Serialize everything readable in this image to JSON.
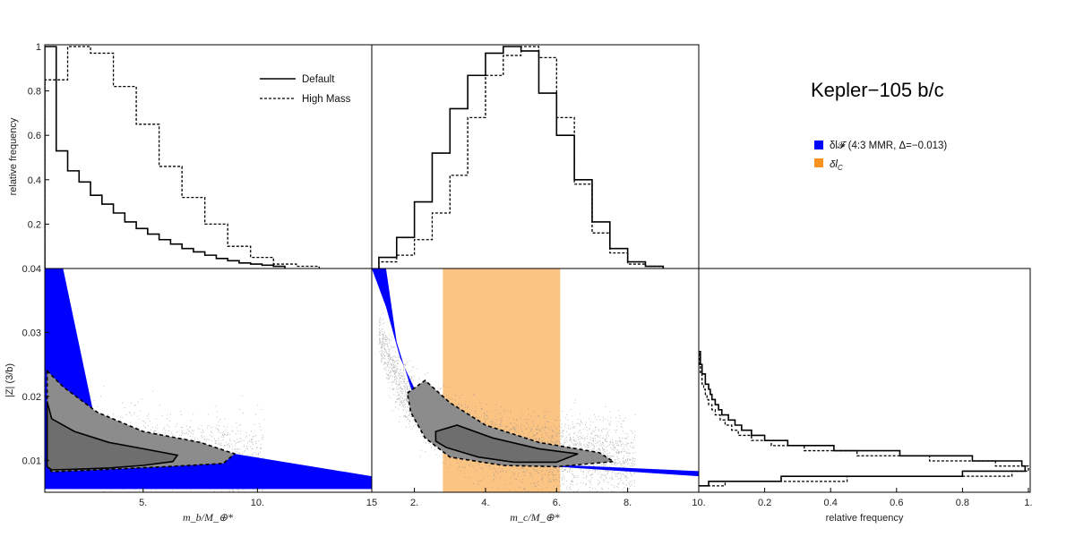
{
  "figure_title": "Kepler−105 b/c",
  "legend_hist": {
    "default": "Default",
    "high_mass": "High Mass"
  },
  "legend_regions": {
    "blue_label": "δl𝓕 (4:3 MMR, Δ=−0.013)",
    "orange_label": "δl",
    "orange_sub": "C",
    "blue_color": "#0000ff",
    "orange_color": "#f7931e"
  },
  "axes_labels": {
    "ylabel_top": "relative frequency",
    "ylabel_bottom": "|Z| (3/b)",
    "xlabel_mb": "m_b/M_⊕*",
    "xlabel_mc": "m_c/M_⊕*",
    "xlabel_right": "relative frequency"
  },
  "chart_data": [
    {
      "type": "bar",
      "panel": "histogram m_b",
      "title": "",
      "xlim": [
        0.7,
        15
      ],
      "ylim": [
        0,
        1
      ],
      "xticks": [
        "5.",
        "10.",
        "15"
      ],
      "yticks": [
        "0.2",
        "0.4",
        "0.6",
        "0.8",
        "1"
      ],
      "ylabel": "relative frequency",
      "series": [
        {
          "name": "Default",
          "style": "solid",
          "bin_edges": [
            0.7,
            1.2,
            1.7,
            2.2,
            2.7,
            3.2,
            3.7,
            4.2,
            4.7,
            5.2,
            5.7,
            6.2,
            6.7,
            7.2,
            7.7,
            8.2,
            8.7,
            9.2,
            9.7,
            10.2,
            10.7,
            11.2
          ],
          "values": [
            1.0,
            0.53,
            0.44,
            0.39,
            0.33,
            0.29,
            0.25,
            0.21,
            0.18,
            0.155,
            0.13,
            0.11,
            0.09,
            0.075,
            0.06,
            0.045,
            0.035,
            0.025,
            0.02,
            0.015,
            0.01
          ]
        },
        {
          "name": "High Mass",
          "style": "dashed",
          "bin_edges": [
            0.7,
            1.7,
            2.7,
            3.7,
            4.7,
            5.7,
            6.7,
            7.7,
            8.7,
            9.7,
            10.7,
            11.7,
            12.7
          ],
          "values": [
            0.85,
            1.0,
            0.97,
            0.82,
            0.65,
            0.46,
            0.32,
            0.2,
            0.1,
            0.05,
            0.02,
            0.01
          ]
        }
      ]
    },
    {
      "type": "bar",
      "panel": "histogram m_c",
      "title": "",
      "xlim": [
        0.8,
        10
      ],
      "ylim": [
        0,
        1
      ],
      "xticks": [
        "2.",
        "4.",
        "6.",
        "8.",
        "10."
      ],
      "series": [
        {
          "name": "Default",
          "style": "solid",
          "bin_edges": [
            1.0,
            1.5,
            2.0,
            2.5,
            3.0,
            3.5,
            4.0,
            4.5,
            5.0,
            5.5,
            6.0,
            6.5,
            7.0,
            7.5,
            8.0,
            8.5,
            9.0
          ],
          "values": [
            0.05,
            0.14,
            0.3,
            0.52,
            0.72,
            0.87,
            0.97,
            1.0,
            0.98,
            0.79,
            0.6,
            0.4,
            0.21,
            0.09,
            0.03,
            0.01
          ]
        },
        {
          "name": "High Mass",
          "style": "dashed",
          "bin_edges": [
            1.0,
            1.5,
            2.0,
            2.5,
            3.0,
            3.5,
            4.0,
            4.5,
            5.0,
            5.5,
            6.0,
            6.5,
            7.0,
            7.5,
            8.0,
            8.5,
            9.0
          ],
          "values": [
            0.03,
            0.06,
            0.13,
            0.25,
            0.42,
            0.68,
            0.87,
            0.96,
            1.0,
            0.95,
            0.68,
            0.38,
            0.16,
            0.07,
            0.02,
            0.01
          ]
        }
      ]
    },
    {
      "type": "scatter",
      "panel": "|Z| vs m_b",
      "xlim": [
        0.7,
        15
      ],
      "ylim": [
        0.005,
        0.04
      ],
      "xticks": [
        "5.",
        "10.",
        "15"
      ],
      "yticks": [
        "0.01",
        "0.02",
        "0.03",
        "0.04"
      ],
      "ylabel": "|Z| (3/b)",
      "blue_region": {
        "upper_curve": [
          [
            0.7,
            0.04
          ],
          [
            1.5,
            0.04
          ],
          [
            3.0,
            0.0145
          ],
          [
            15,
            0.0075
          ]
        ],
        "lower_curve": [
          [
            0.7,
            0.0055
          ],
          [
            15,
            0.0055
          ]
        ]
      },
      "contour_solid": [
        [
          0.8,
          0.0192
        ],
        [
          1.0,
          0.0165
        ],
        [
          2.0,
          0.0145
        ],
        [
          3.5,
          0.0128
        ],
        [
          5.0,
          0.0118
        ],
        [
          6.5,
          0.0108
        ],
        [
          6.3,
          0.0098
        ],
        [
          5.0,
          0.0092
        ],
        [
          3.5,
          0.0088
        ],
        [
          2.0,
          0.0086
        ],
        [
          1.0,
          0.0085
        ],
        [
          0.8,
          0.009
        ]
      ],
      "contour_dashed": [
        [
          0.8,
          0.024
        ],
        [
          1.5,
          0.0215
        ],
        [
          3.0,
          0.0175
        ],
        [
          5.0,
          0.0145
        ],
        [
          7.5,
          0.0128
        ],
        [
          9.0,
          0.011
        ],
        [
          8.5,
          0.0095
        ],
        [
          6.0,
          0.009
        ],
        [
          3.0,
          0.0085
        ],
        [
          1.0,
          0.0082
        ],
        [
          0.8,
          0.009
        ]
      ]
    },
    {
      "type": "scatter",
      "panel": "|Z| vs m_c",
      "xlim": [
        0.8,
        10
      ],
      "ylim": [
        0.005,
        0.04
      ],
      "xticks": [
        "2.",
        "4.",
        "6.",
        "8.",
        "10."
      ],
      "blue_region": {
        "upper_curve": [
          [
            0.8,
            0.04
          ],
          [
            1.2,
            0.034
          ],
          [
            1.6,
            0.026
          ],
          [
            2.4,
            0.0165
          ],
          [
            4.0,
            0.011
          ],
          [
            6.0,
            0.0093
          ],
          [
            10,
            0.0083
          ]
        ],
        "lower_curve": [
          [
            1.2,
            0.04
          ],
          [
            1.5,
            0.0285
          ],
          [
            2.0,
            0.0195
          ],
          [
            3.0,
            0.0132
          ],
          [
            4.5,
            0.0103
          ],
          [
            6.0,
            0.009
          ],
          [
            10,
            0.0075
          ]
        ]
      },
      "orange_band": {
        "x_range": [
          2.8,
          6.1
        ]
      },
      "contour_solid": [
        [
          2.6,
          0.0145
        ],
        [
          3.2,
          0.0155
        ],
        [
          4.2,
          0.0135
        ],
        [
          5.5,
          0.0118
        ],
        [
          6.6,
          0.011
        ],
        [
          6.0,
          0.0097
        ],
        [
          4.8,
          0.0097
        ],
        [
          3.8,
          0.0105
        ],
        [
          2.9,
          0.012
        ],
        [
          2.6,
          0.013
        ]
      ],
      "contour_dashed": [
        [
          1.8,
          0.0205
        ],
        [
          2.3,
          0.0225
        ],
        [
          3.0,
          0.019
        ],
        [
          4.0,
          0.0155
        ],
        [
          5.5,
          0.0128
        ],
        [
          7.2,
          0.0112
        ],
        [
          7.6,
          0.0098
        ],
        [
          6.0,
          0.009
        ],
        [
          4.5,
          0.0092
        ],
        [
          3.0,
          0.0105
        ],
        [
          2.3,
          0.0135
        ],
        [
          1.9,
          0.0175
        ]
      ]
    },
    {
      "type": "bar",
      "panel": "histogram |Z| (horizontal)",
      "xlim": [
        0,
        1
      ],
      "ylim": [
        0.005,
        0.04
      ],
      "xticks": [
        "0.2",
        "0.4",
        "0.6",
        "0.8",
        "1."
      ],
      "xlabel": "relative frequency",
      "series": [
        {
          "name": "Default",
          "style": "solid",
          "bin_edges": [
            0.006,
            0.0067,
            0.0075,
            0.0083,
            0.0091,
            0.0099,
            0.0107,
            0.0115,
            0.0123,
            0.0131,
            0.0139,
            0.0147,
            0.0155,
            0.0163,
            0.0171,
            0.0179,
            0.0187,
            0.0195,
            0.0203,
            0.0211,
            0.0219,
            0.0235,
            0.025,
            0.027
          ],
          "values": [
            0.03,
            0.25,
            0.8,
            0.99,
            0.98,
            0.83,
            0.61,
            0.41,
            0.27,
            0.2,
            0.16,
            0.13,
            0.11,
            0.09,
            0.07,
            0.06,
            0.05,
            0.04,
            0.035,
            0.03,
            0.02,
            0.01,
            0.005
          ]
        },
        {
          "name": "High Mass",
          "style": "dashed",
          "bin_edges": [
            0.006,
            0.0067,
            0.0075,
            0.0083,
            0.0091,
            0.0099,
            0.0107,
            0.0115,
            0.0123,
            0.0131,
            0.0139,
            0.0147,
            0.0155,
            0.0163,
            0.0171,
            0.0179,
            0.0187,
            0.0195,
            0.0203,
            0.0211,
            0.0219,
            0.0235,
            0.025,
            0.027
          ],
          "values": [
            0.08,
            0.45,
            0.95,
            1.0,
            0.9,
            0.7,
            0.48,
            0.32,
            0.22,
            0.16,
            0.12,
            0.1,
            0.08,
            0.065,
            0.05,
            0.04,
            0.03,
            0.025,
            0.02,
            0.015,
            0.01,
            0.005,
            0.003
          ]
        }
      ]
    }
  ]
}
